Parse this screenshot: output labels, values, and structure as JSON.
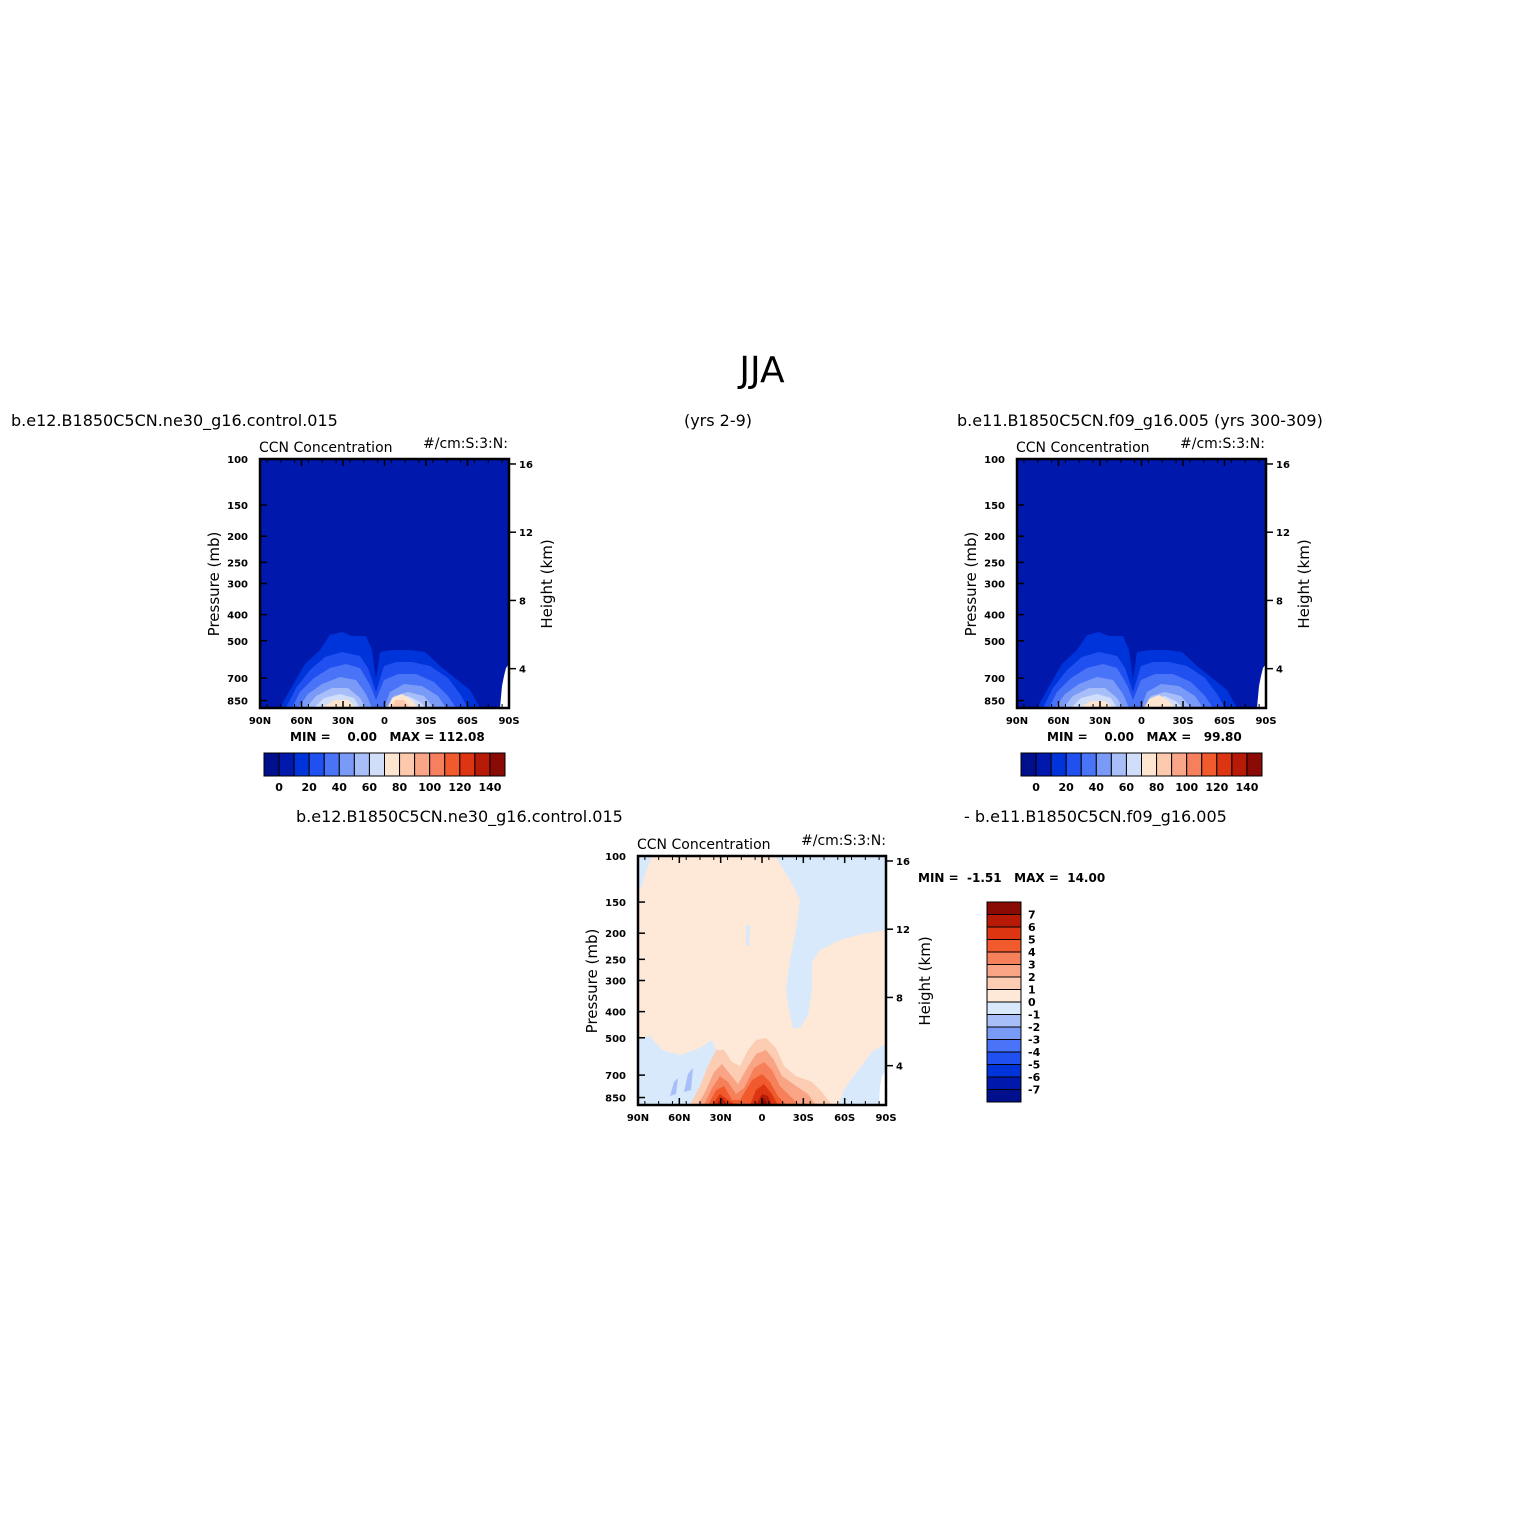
{
  "figure": {
    "season": "JJA",
    "case1_label": "b.e12.B1850C5CN.ne30_g16.control.015",
    "case1_years": "(yrs 2-9)",
    "case2_label": "b.e11.B1850C5CN.f09_g16.005 (yrs 300-309)",
    "diff_left_label": "b.e12.B1850C5CN.ne30_g16.control.015",
    "diff_right_label": "- b.e11.B1850C5CN.f09_g16.005"
  },
  "colors": {
    "abs_levels": [
      "#00108c",
      "#0019ac",
      "#0034db",
      "#2150f0",
      "#4a74f8",
      "#7a9af8",
      "#a8bef8",
      "#d0defa",
      "#fde5d0",
      "#fcc9ad",
      "#f9a587",
      "#f6805e",
      "#f05a2d",
      "#dd3511",
      "#b81a08",
      "#8a0a05"
    ],
    "diff_levels": [
      "#00108c",
      "#0019ac",
      "#0034db",
      "#2150f0",
      "#4a74f8",
      "#7a9af8",
      "#a8bef8",
      "#d7e9fb",
      "#fee9d8",
      "#fccdb2",
      "#f9a585",
      "#f6805a",
      "#f05a2d",
      "#dd3511",
      "#b81a08",
      "#8a0a05"
    ]
  },
  "panels": [
    {
      "id": "case1",
      "title_left": "CCN Concentration",
      "title_right": "#/cm:S:3:N:",
      "minmax": "MIN =    0.00   MAX = 112.08",
      "y_label_left": "Pressure (mb)",
      "y_label_right": "Height (km)"
    },
    {
      "id": "case2",
      "title_left": "CCN Concentration",
      "title_right": "#/cm:S:3:N:",
      "minmax": "MIN =    0.00   MAX =   99.80",
      "y_label_left": "Pressure (mb)",
      "y_label_right": "Height (km)"
    },
    {
      "id": "diff",
      "title_left": "CCN Concentration",
      "title_right": "#/cm:S:3:N:",
      "minmax": "MIN =  -1.51   MAX =  14.00",
      "y_label_left": "Pressure (mb)",
      "y_label_right": "Height (km)"
    }
  ],
  "chart_data": [
    {
      "type": "heatmap",
      "title": "CCN Concentration",
      "units": "#/cm:S:3:N:",
      "x_ticks": [
        "90N",
        "60N",
        "30N",
        "0",
        "30S",
        "60S",
        "90S"
      ],
      "y_ticks_left": [
        "100",
        "150",
        "200",
        "250",
        "300",
        "400",
        "500",
        "700",
        "850"
      ],
      "y_ticks_right": [
        "16",
        "12",
        "8",
        "4"
      ],
      "ylabel": "Pressure (mb)",
      "ylabel_right": "Height (km)",
      "colorbar_labels": [
        "0",
        "20",
        "40",
        "60",
        "80",
        "100",
        "120",
        "140"
      ],
      "min": 0.0,
      "max": 112.08
    },
    {
      "type": "heatmap",
      "title": "CCN Concentration",
      "units": "#/cm:S:3:N:",
      "x_ticks": [
        "90N",
        "60N",
        "30N",
        "0",
        "30S",
        "60S",
        "90S"
      ],
      "y_ticks_left": [
        "100",
        "150",
        "200",
        "250",
        "300",
        "400",
        "500",
        "700",
        "850"
      ],
      "y_ticks_right": [
        "16",
        "12",
        "8",
        "4"
      ],
      "ylabel": "Pressure (mb)",
      "ylabel_right": "Height (km)",
      "colorbar_labels": [
        "0",
        "20",
        "40",
        "60",
        "80",
        "100",
        "120",
        "140"
      ],
      "min": 0.0,
      "max": 99.8
    },
    {
      "type": "heatmap",
      "title": "CCN Concentration",
      "units": "#/cm:S:3:N:",
      "x_ticks": [
        "90N",
        "60N",
        "30N",
        "0",
        "30S",
        "60S",
        "90S"
      ],
      "y_ticks_left": [
        "100",
        "150",
        "200",
        "250",
        "300",
        "400",
        "500",
        "700",
        "850"
      ],
      "y_ticks_right": [
        "16",
        "12",
        "8",
        "4"
      ],
      "ylabel": "Pressure (mb)",
      "ylabel_right": "Height (km)",
      "colorbar_labels": [
        "7",
        "6",
        "5",
        "4",
        "3",
        "2",
        "1",
        "0",
        "-1",
        "-2",
        "-3",
        "-4",
        "-5",
        "-6",
        "-7"
      ],
      "min": -1.51,
      "max": 14.0
    }
  ]
}
